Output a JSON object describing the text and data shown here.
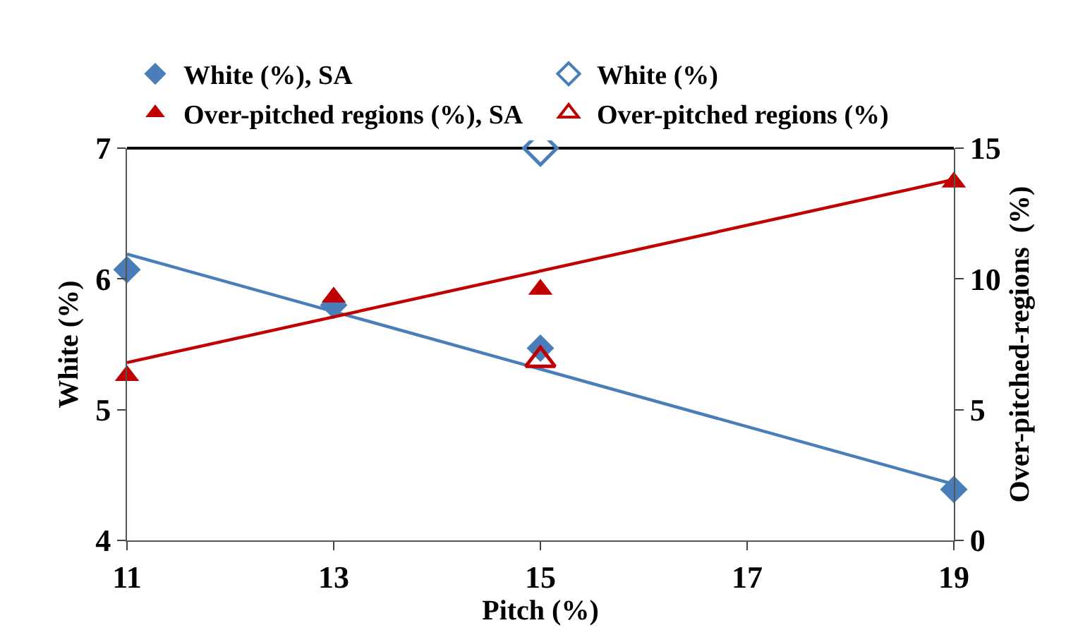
{
  "chart_data": {
    "type": "scatter",
    "xlabel": "Pitch (%)",
    "ylabel": "White (%)",
    "y2label": "Over-pitched-regions  (%)",
    "xlim": [
      11,
      19
    ],
    "xticks": [
      11,
      13,
      15,
      17,
      19
    ],
    "ylim": [
      4,
      7
    ],
    "yticks": [
      4,
      5,
      6,
      7
    ],
    "y2lim": [
      0,
      15
    ],
    "y2ticks": [
      0,
      5,
      10,
      15
    ],
    "legend": "top",
    "series": [
      {
        "name": "White (%), SA",
        "color": "#4a7ebb",
        "marker": "diamond",
        "x": [
          11,
          13,
          15,
          19
        ],
        "values": [
          6.07,
          5.8,
          5.47,
          4.39
        ]
      },
      {
        "name": "White (%)",
        "color": "#4a7ebb",
        "marker": "diamond-open",
        "x": [
          15
        ],
        "values": [
          7.0
        ]
      },
      {
        "name": "Over-pitched regions (%), SA",
        "color": "#c00000",
        "marker": "triangle",
        "axis": "y2",
        "x": [
          11,
          13,
          15,
          19
        ],
        "values": [
          6.3,
          9.3,
          9.6,
          13.7
        ]
      },
      {
        "name": "Over-pitched regions (%)",
        "color": "#c00000",
        "marker": "triangle-open",
        "axis": "y2",
        "x": [
          15
        ],
        "values": [
          6.9
        ]
      },
      {
        "type": "line",
        "color": "#4a7ebb",
        "x": [
          11,
          19
        ],
        "values": [
          6.19,
          4.43
        ]
      },
      {
        "type": "line",
        "color": "#c00000",
        "axis": "y2",
        "x": [
          11,
          19
        ],
        "values": [
          6.8,
          13.8
        ]
      }
    ]
  }
}
